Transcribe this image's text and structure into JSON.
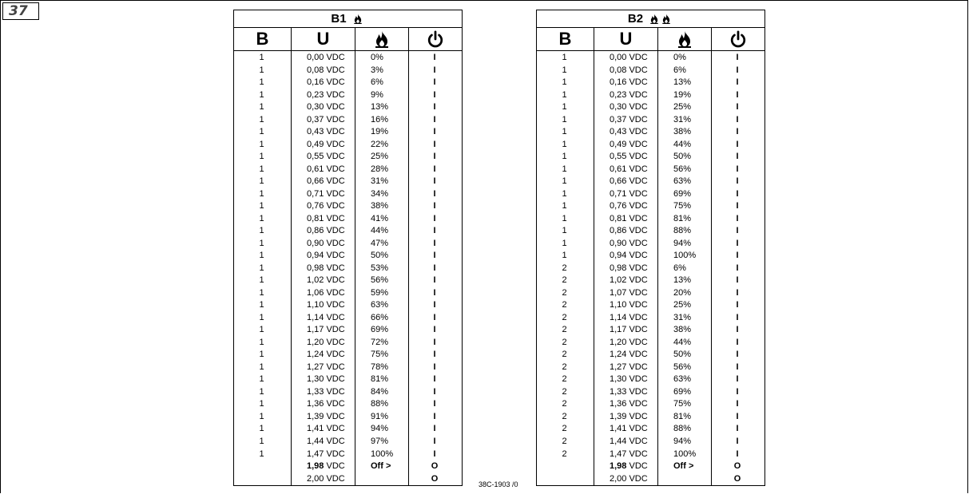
{
  "figure": {
    "number": "37"
  },
  "doc_code": "38C-1903 /0",
  "headers": {
    "col_b": "B",
    "col_u": "U"
  },
  "icons": [
    "flame-icon",
    "power-icon"
  ],
  "tables": [
    {
      "title": "B1",
      "title_flames": 1,
      "rows": [
        [
          "1",
          "0,00 VDC",
          "0%",
          "I"
        ],
        [
          "1",
          "0,08 VDC",
          "3%",
          "I"
        ],
        [
          "1",
          "0,16 VDC",
          "6%",
          "I"
        ],
        [
          "1",
          "0,23 VDC",
          "9%",
          "I"
        ],
        [
          "1",
          "0,30 VDC",
          "13%",
          "I"
        ],
        [
          "1",
          "0,37 VDC",
          "16%",
          "I"
        ],
        [
          "1",
          "0,43 VDC",
          "19%",
          "I"
        ],
        [
          "1",
          "0,49 VDC",
          "22%",
          "I"
        ],
        [
          "1",
          "0,55 VDC",
          "25%",
          "I"
        ],
        [
          "1",
          "0,61 VDC",
          "28%",
          "I"
        ],
        [
          "1",
          "0,66 VDC",
          "31%",
          "I"
        ],
        [
          "1",
          "0,71 VDC",
          "34%",
          "I"
        ],
        [
          "1",
          "0,76 VDC",
          "38%",
          "I"
        ],
        [
          "1",
          "0,81 VDC",
          "41%",
          "I"
        ],
        [
          "1",
          "0,86 VDC",
          "44%",
          "I"
        ],
        [
          "1",
          "0,90 VDC",
          "47%",
          "I"
        ],
        [
          "1",
          "0,94 VDC",
          "50%",
          "I"
        ],
        [
          "1",
          "0,98 VDC",
          "53%",
          "I"
        ],
        [
          "1",
          "1,02 VDC",
          "56%",
          "I"
        ],
        [
          "1",
          "1,06 VDC",
          "59%",
          "I"
        ],
        [
          "1",
          "1,10 VDC",
          "63%",
          "I"
        ],
        [
          "1",
          "1,14 VDC",
          "66%",
          "I"
        ],
        [
          "1",
          "1,17 VDC",
          "69%",
          "I"
        ],
        [
          "1",
          "1,20 VDC",
          "72%",
          "I"
        ],
        [
          "1",
          "1,24 VDC",
          "75%",
          "I"
        ],
        [
          "1",
          "1,27 VDC",
          "78%",
          "I"
        ],
        [
          "1",
          "1,30 VDC",
          "81%",
          "I"
        ],
        [
          "1",
          "1,33 VDC",
          "84%",
          "I"
        ],
        [
          "1",
          "1,36 VDC",
          "88%",
          "I"
        ],
        [
          "1",
          "1,39 VDC",
          "91%",
          "I"
        ],
        [
          "1",
          "1,41 VDC",
          "94%",
          "I"
        ],
        [
          "1",
          "1,44 VDC",
          "97%",
          "I"
        ],
        [
          "1",
          "1,47 VDC",
          "100%",
          "I"
        ]
      ],
      "footer_rows": [
        {
          "u_bold": "1,98",
          "u_rest": " VDC",
          "pct": "Off >",
          "state": "O"
        },
        {
          "u_bold": "",
          "u_rest": "2,00 VDC",
          "pct": "",
          "state": "O"
        }
      ]
    },
    {
      "title": "B2",
      "title_flames": 2,
      "rows": [
        [
          "1",
          "0,00 VDC",
          "0%",
          "I"
        ],
        [
          "1",
          "0,08 VDC",
          "6%",
          "I"
        ],
        [
          "1",
          "0,16 VDC",
          "13%",
          "I"
        ],
        [
          "1",
          "0,23 VDC",
          "19%",
          "I"
        ],
        [
          "1",
          "0,30 VDC",
          "25%",
          "I"
        ],
        [
          "1",
          "0,37 VDC",
          "31%",
          "I"
        ],
        [
          "1",
          "0,43 VDC",
          "38%",
          "I"
        ],
        [
          "1",
          "0,49 VDC",
          "44%",
          "I"
        ],
        [
          "1",
          "0,55 VDC",
          "50%",
          "I"
        ],
        [
          "1",
          "0,61 VDC",
          "56%",
          "I"
        ],
        [
          "1",
          "0,66 VDC",
          "63%",
          "I"
        ],
        [
          "1",
          "0,71 VDC",
          "69%",
          "I"
        ],
        [
          "1",
          "0,76 VDC",
          "75%",
          "I"
        ],
        [
          "1",
          "0,81 VDC",
          "81%",
          "I"
        ],
        [
          "1",
          "0,86 VDC",
          "88%",
          "I"
        ],
        [
          "1",
          "0,90 VDC",
          "94%",
          "I"
        ],
        [
          "1",
          "0,94 VDC",
          "100%",
          "I"
        ],
        [
          "2",
          "0,98 VDC",
          "6%",
          "I"
        ],
        [
          "2",
          "1,02 VDC",
          "13%",
          "I"
        ],
        [
          "2",
          "1,07 VDC",
          "20%",
          "I"
        ],
        [
          "2",
          "1,10 VDC",
          "25%",
          "I"
        ],
        [
          "2",
          "1,14 VDC",
          "31%",
          "I"
        ],
        [
          "2",
          "1,17 VDC",
          "38%",
          "I"
        ],
        [
          "2",
          "1,20 VDC",
          "44%",
          "I"
        ],
        [
          "2",
          "1,24 VDC",
          "50%",
          "I"
        ],
        [
          "2",
          "1,27 VDC",
          "56%",
          "I"
        ],
        [
          "2",
          "1,30 VDC",
          "63%",
          "I"
        ],
        [
          "2",
          "1,33 VDC",
          "69%",
          "I"
        ],
        [
          "2",
          "1,36 VDC",
          "75%",
          "I"
        ],
        [
          "2",
          "1,39 VDC",
          "81%",
          "I"
        ],
        [
          "2",
          "1,41 VDC",
          "88%",
          "I"
        ],
        [
          "2",
          "1,44 VDC",
          "94%",
          "I"
        ],
        [
          "2",
          "1,47 VDC",
          "100%",
          "I"
        ]
      ],
      "footer_rows": [
        {
          "u_bold": "1,98",
          "u_rest": " VDC",
          "pct": "Off >",
          "state": "O"
        },
        {
          "u_bold": "",
          "u_rest": "2,00 VDC",
          "pct": "",
          "state": "O"
        }
      ]
    }
  ]
}
